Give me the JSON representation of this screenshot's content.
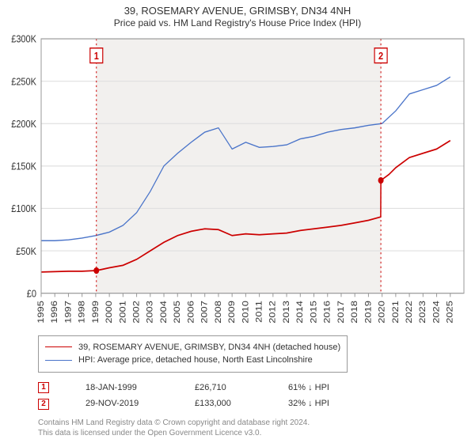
{
  "title": "39, ROSEMARY AVENUE, GRIMSBY, DN34 4NH",
  "subtitle": "Price paid vs. HM Land Registry's House Price Index (HPI)",
  "chart": {
    "type": "line",
    "background_color": "#ffffff",
    "plot_border_color": "#999999",
    "grid_color": "#e0e0e0",
    "axis_text_color": "#333333",
    "axis_font_size": 11,
    "shade_band_color": "#f2f0ee",
    "marker_guide_dash": "2,3",
    "x": {
      "min": 1995,
      "max": 2026,
      "tick_step": 1,
      "ticks": [
        1995,
        1996,
        1997,
        1998,
        1999,
        2000,
        2001,
        2002,
        2003,
        2004,
        2005,
        2006,
        2007,
        2008,
        2009,
        2010,
        2011,
        2012,
        2013,
        2014,
        2015,
        2016,
        2017,
        2018,
        2019,
        2020,
        2021,
        2022,
        2023,
        2024,
        2025
      ],
      "label_rotation_deg": -90
    },
    "y": {
      "min": 0,
      "max": 300000,
      "tick_step": 50000,
      "ticks": [
        0,
        50000,
        100000,
        150000,
        200000,
        250000,
        300000
      ],
      "tick_format_prefix": "£",
      "tick_format_suffix": "K",
      "tick_format_divisor": 1000
    },
    "series": [
      {
        "id": "price_paid",
        "label": "39, ROSEMARY AVENUE, GRIMSBY, DN34 4NH (detached house)",
        "color": "#cc0000",
        "line_width": 1.5,
        "points": [
          {
            "x": 1995.0,
            "y": 25000
          },
          {
            "x": 1996.0,
            "y": 25500
          },
          {
            "x": 1997.0,
            "y": 26000
          },
          {
            "x": 1998.0,
            "y": 26000
          },
          {
            "x": 1999.05,
            "y": 26710
          },
          {
            "x": 2000.0,
            "y": 30000
          },
          {
            "x": 2001.0,
            "y": 33000
          },
          {
            "x": 2002.0,
            "y": 40000
          },
          {
            "x": 2003.0,
            "y": 50000
          },
          {
            "x": 2004.0,
            "y": 60000
          },
          {
            "x": 2005.0,
            "y": 68000
          },
          {
            "x": 2006.0,
            "y": 73000
          },
          {
            "x": 2007.0,
            "y": 76000
          },
          {
            "x": 2008.0,
            "y": 75000
          },
          {
            "x": 2009.0,
            "y": 68000
          },
          {
            "x": 2010.0,
            "y": 70000
          },
          {
            "x": 2011.0,
            "y": 69000
          },
          {
            "x": 2012.0,
            "y": 70000
          },
          {
            "x": 2013.0,
            "y": 71000
          },
          {
            "x": 2014.0,
            "y": 74000
          },
          {
            "x": 2015.0,
            "y": 76000
          },
          {
            "x": 2016.0,
            "y": 78000
          },
          {
            "x": 2017.0,
            "y": 80000
          },
          {
            "x": 2018.0,
            "y": 83000
          },
          {
            "x": 2019.0,
            "y": 86000
          },
          {
            "x": 2019.9,
            "y": 90000
          },
          {
            "x": 2019.91,
            "y": 133000
          },
          {
            "x": 2020.5,
            "y": 140000
          },
          {
            "x": 2021.0,
            "y": 148000
          },
          {
            "x": 2022.0,
            "y": 160000
          },
          {
            "x": 2023.0,
            "y": 165000
          },
          {
            "x": 2024.0,
            "y": 170000
          },
          {
            "x": 2025.0,
            "y": 180000
          }
        ]
      },
      {
        "id": "hpi",
        "label": "HPI: Average price, detached house, North East Lincolnshire",
        "color": "#4a74c9",
        "line_width": 1.2,
        "points": [
          {
            "x": 1995.0,
            "y": 62000
          },
          {
            "x": 1996.0,
            "y": 62000
          },
          {
            "x": 1997.0,
            "y": 63000
          },
          {
            "x": 1998.0,
            "y": 65000
          },
          {
            "x": 1999.0,
            "y": 68000
          },
          {
            "x": 2000.0,
            "y": 72000
          },
          {
            "x": 2001.0,
            "y": 80000
          },
          {
            "x": 2002.0,
            "y": 95000
          },
          {
            "x": 2003.0,
            "y": 120000
          },
          {
            "x": 2004.0,
            "y": 150000
          },
          {
            "x": 2005.0,
            "y": 165000
          },
          {
            "x": 2006.0,
            "y": 178000
          },
          {
            "x": 2007.0,
            "y": 190000
          },
          {
            "x": 2008.0,
            "y": 195000
          },
          {
            "x": 2009.0,
            "y": 170000
          },
          {
            "x": 2010.0,
            "y": 178000
          },
          {
            "x": 2011.0,
            "y": 172000
          },
          {
            "x": 2012.0,
            "y": 173000
          },
          {
            "x": 2013.0,
            "y": 175000
          },
          {
            "x": 2014.0,
            "y": 182000
          },
          {
            "x": 2015.0,
            "y": 185000
          },
          {
            "x": 2016.0,
            "y": 190000
          },
          {
            "x": 2017.0,
            "y": 193000
          },
          {
            "x": 2018.0,
            "y": 195000
          },
          {
            "x": 2019.0,
            "y": 198000
          },
          {
            "x": 2020.0,
            "y": 200000
          },
          {
            "x": 2021.0,
            "y": 215000
          },
          {
            "x": 2022.0,
            "y": 235000
          },
          {
            "x": 2023.0,
            "y": 240000
          },
          {
            "x": 2024.0,
            "y": 245000
          },
          {
            "x": 2025.0,
            "y": 255000
          }
        ]
      }
    ],
    "markers": [
      {
        "n": 1,
        "x": 1999.05,
        "y": 26710,
        "color": "#cc0000"
      },
      {
        "n": 2,
        "x": 2019.91,
        "y": 133000,
        "color": "#cc0000"
      }
    ]
  },
  "legend": {
    "items": [
      {
        "series_id": "price_paid"
      },
      {
        "series_id": "hpi"
      }
    ]
  },
  "sales": [
    {
      "n": 1,
      "date": "18-JAN-1999",
      "price": "£26,710",
      "diff": "61% ↓ HPI",
      "color": "#cc0000"
    },
    {
      "n": 2,
      "date": "29-NOV-2019",
      "price": "£133,000",
      "diff": "32% ↓ HPI",
      "color": "#cc0000"
    }
  ],
  "footnote": {
    "line1": "Contains HM Land Registry data © Crown copyright and database right 2024.",
    "line2": "This data is licensed under the Open Government Licence v3.0.",
    "color": "#888888"
  }
}
